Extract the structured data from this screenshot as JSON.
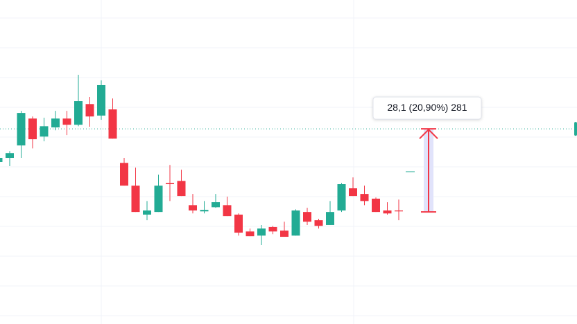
{
  "chart_data": {
    "type": "candlestick",
    "up_color": "#22ab94",
    "down_color": "#f23645",
    "ylim": [
      96.5,
      206.1
    ],
    "open": [
      151.3,
      152.7,
      156.9,
      166.0,
      159.9,
      163.0,
      166.0,
      163.9,
      170.9,
      167.0,
      169.1,
      151.0,
      143.3,
      133.5,
      134.4,
      144.2,
      144.9,
      136.7,
      134.6,
      136.0,
      136.7,
      133.5,
      127.8,
      126.4,
      129.3,
      128.1,
      126.4,
      134.4,
      131.6,
      130.0,
      134.9,
      142.4,
      140.5,
      138.9,
      134.9,
      134.9
    ],
    "high": [
      153.1,
      155.0,
      168.6,
      166.7,
      166.3,
      168.6,
      168.6,
      180.8,
      173.3,
      178.9,
      172.8,
      152.7,
      149.4,
      138.1,
      147.0,
      150.3,
      148.7,
      140.5,
      138.1,
      140.5,
      139.6,
      133.9,
      128.8,
      130.0,
      129.7,
      131.1,
      135.3,
      135.8,
      132.1,
      138.1,
      144.2,
      146.1,
      143.3,
      139.3,
      137.7,
      138.6
    ],
    "low": [
      150.8,
      149.9,
      152.7,
      155.9,
      158.3,
      162.0,
      160.4,
      163.4,
      163.2,
      165.6,
      159.2,
      143.3,
      134.4,
      131.6,
      134.4,
      138.1,
      139.8,
      133.9,
      133.9,
      135.8,
      133.0,
      126.4,
      126.2,
      123.2,
      126.9,
      126.0,
      126.4,
      130.0,
      128.8,
      130.0,
      134.4,
      139.8,
      136.7,
      134.4,
      133.5,
      131.6
    ],
    "close": [
      152.7,
      154.3,
      167.9,
      159.0,
      163.4,
      166.0,
      163.9,
      171.9,
      166.7,
      177.3,
      159.2,
      143.3,
      134.4,
      134.9,
      143.3,
      143.8,
      139.8,
      134.9,
      135.1,
      137.7,
      133.0,
      127.4,
      126.2,
      128.8,
      127.8,
      126.0,
      134.9,
      131.1,
      129.7,
      134.4,
      143.8,
      139.8,
      138.1,
      134.4,
      133.9,
      134.6
    ],
    "price_line": 162.5,
    "measure": {
      "from": 134.4,
      "to": 162.5,
      "label": "28,1 (20,90%) 281"
    }
  }
}
